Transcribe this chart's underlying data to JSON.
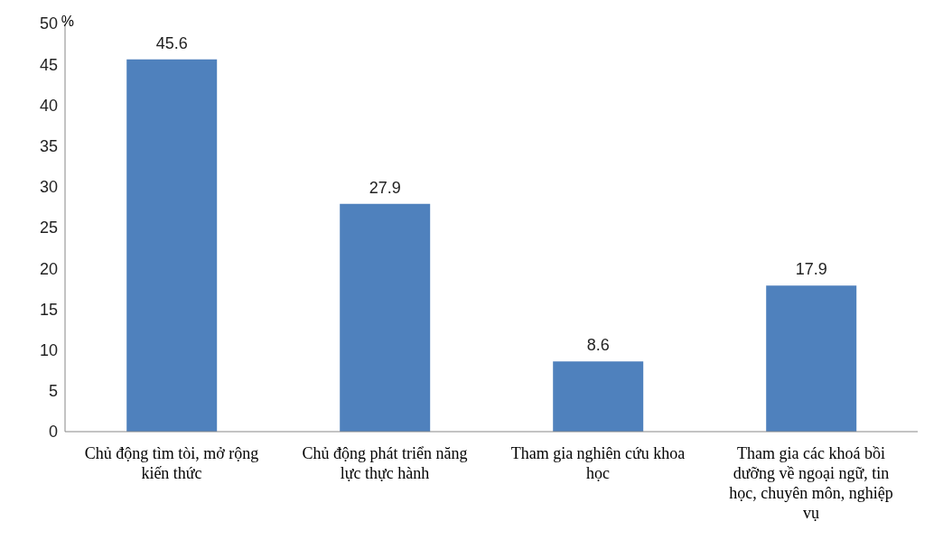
{
  "chart_data": {
    "type": "bar",
    "ylabel": "%",
    "categories": [
      "Chủ động tìm tòi, mở rộng kiến thức",
      "Chủ động phát triển năng lực thực hành",
      "Tham gia nghiên cứu khoa học",
      "Tham gia các khoá bồi dưỡng về ngoại ngữ, tin học, chuyên môn, nghiệp vụ"
    ],
    "values": [
      45.6,
      27.9,
      8.6,
      17.9
    ],
    "color": "#4f81bd",
    "data_labels": true,
    "ylim": [
      0,
      50
    ],
    "yticks": [
      0,
      5,
      10,
      15,
      20,
      25,
      30,
      35,
      40,
      45,
      50
    ],
    "grid": false,
    "legend": false
  }
}
